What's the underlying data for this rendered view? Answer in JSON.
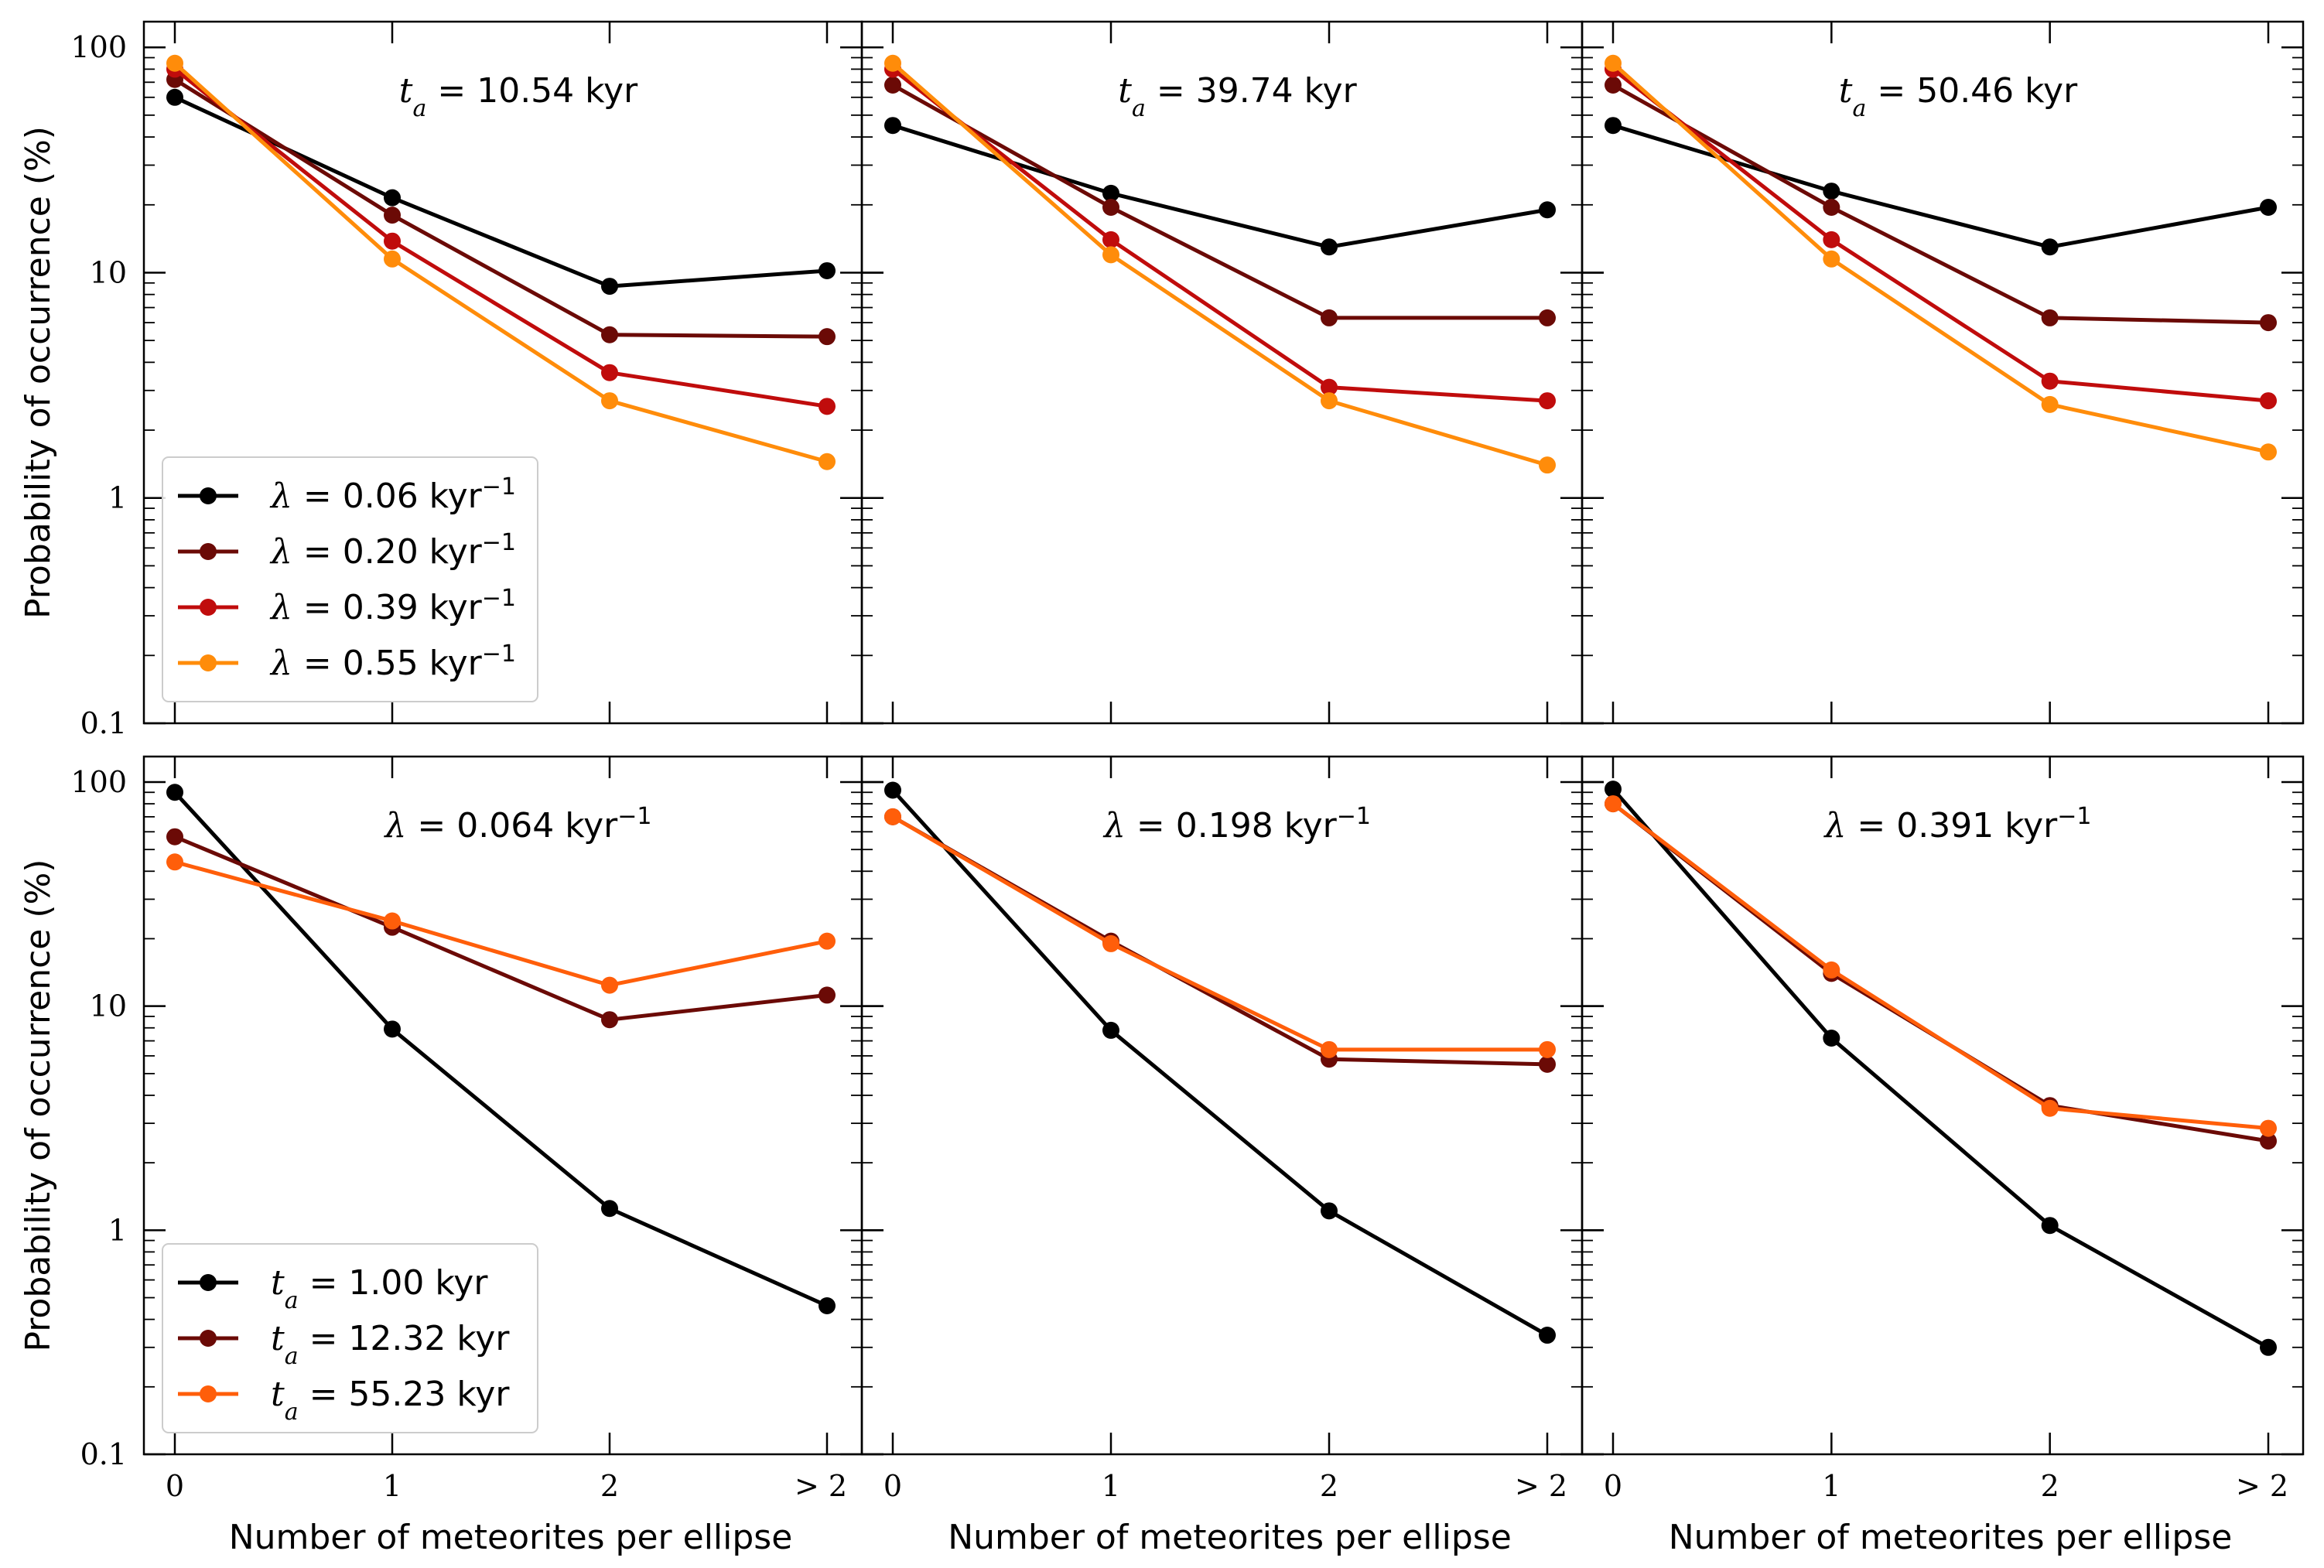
{
  "figure": {
    "ylabel": "Probability of occurrence (%)",
    "xlabel": "Number of meteorites per ellipse",
    "x_categories": [
      "0",
      "1",
      "2",
      "> 2"
    ],
    "y_tick_labels": [
      "0.1",
      "1",
      "10",
      "100"
    ],
    "ylim": [
      0.1,
      130
    ]
  },
  "chart_data": [
    {
      "type": "line",
      "panel": "top-left",
      "annotation": "t_a = 10.54 kyr",
      "legend": {
        "placement": "lower-left",
        "entries": [
          "λ = 0.06 kyr⁻¹",
          "λ = 0.20 kyr⁻¹",
          "λ = 0.39 kyr⁻¹",
          "λ = 0.55 kyr⁻¹"
        ]
      },
      "series": [
        {
          "name": "λ = 0.06 kyr⁻¹",
          "color": "#000000",
          "values": [
            60,
            21.5,
            8.7,
            10.2
          ]
        },
        {
          "name": "λ = 0.20 kyr⁻¹",
          "color": "#6b0a06",
          "values": [
            72,
            18,
            5.3,
            5.2
          ]
        },
        {
          "name": "λ = 0.39 kyr⁻¹",
          "color": "#c00c0c",
          "values": [
            80,
            13.8,
            3.6,
            2.55
          ]
        },
        {
          "name": "λ = 0.55 kyr⁻¹",
          "color": "#ff8c0a",
          "values": [
            85,
            11.5,
            2.7,
            1.45
          ]
        }
      ]
    },
    {
      "type": "line",
      "panel": "top-middle",
      "annotation": "t_a = 39.74 kyr",
      "series": [
        {
          "name": "λ = 0.06 kyr⁻¹",
          "color": "#000000",
          "values": [
            45,
            22.5,
            13,
            19
          ]
        },
        {
          "name": "λ = 0.20 kyr⁻¹",
          "color": "#6b0a06",
          "values": [
            68,
            19.5,
            6.3,
            6.3
          ]
        },
        {
          "name": "λ = 0.39 kyr⁻¹",
          "color": "#c00c0c",
          "values": [
            80,
            14,
            3.1,
            2.7
          ]
        },
        {
          "name": "λ = 0.55 kyr⁻¹",
          "color": "#ff8c0a",
          "values": [
            85,
            12,
            2.7,
            1.4
          ]
        }
      ]
    },
    {
      "type": "line",
      "panel": "top-right",
      "annotation": "t_a = 50.46 kyr",
      "series": [
        {
          "name": "λ = 0.06 kyr⁻¹",
          "color": "#000000",
          "values": [
            45,
            23,
            13,
            19.5
          ]
        },
        {
          "name": "λ = 0.20 kyr⁻¹",
          "color": "#6b0a06",
          "values": [
            68,
            19.5,
            6.3,
            6.0
          ]
        },
        {
          "name": "λ = 0.39 kyr⁻¹",
          "color": "#c00c0c",
          "values": [
            80,
            14,
            3.3,
            2.7
          ]
        },
        {
          "name": "λ = 0.55 kyr⁻¹",
          "color": "#ff8c0a",
          "values": [
            85,
            11.5,
            2.6,
            1.6
          ]
        }
      ]
    },
    {
      "type": "line",
      "panel": "bottom-left",
      "annotation": "λ = 0.064 kyr⁻¹",
      "legend": {
        "placement": "lower-left",
        "entries": [
          "t_a = 1.00 kyr",
          "t_a = 12.32 kyr",
          "t_a = 55.23 kyr"
        ]
      },
      "series": [
        {
          "name": "t_a = 1.00 kyr",
          "color": "#000000",
          "values": [
            90,
            7.9,
            1.25,
            0.46
          ]
        },
        {
          "name": "t_a = 12.32 kyr",
          "color": "#6b0a06",
          "values": [
            57,
            22.5,
            8.7,
            11.2
          ]
        },
        {
          "name": "t_a = 55.23 kyr",
          "color": "#ff5e0a",
          "values": [
            44,
            24,
            12.4,
            19.5
          ]
        }
      ]
    },
    {
      "type": "line",
      "panel": "bottom-middle",
      "annotation": "λ = 0.198 kyr⁻¹",
      "series": [
        {
          "name": "t_a = 1.00 kyr",
          "color": "#000000",
          "values": [
            92,
            7.8,
            1.22,
            0.34
          ]
        },
        {
          "name": "t_a = 12.32 kyr",
          "color": "#6b0a06",
          "values": [
            70,
            19.5,
            5.8,
            5.5
          ]
        },
        {
          "name": "t_a = 55.23 kyr",
          "color": "#ff5e0a",
          "values": [
            70,
            19,
            6.4,
            6.4
          ]
        }
      ]
    },
    {
      "type": "line",
      "panel": "bottom-right",
      "annotation": "λ = 0.391 kyr⁻¹",
      "series": [
        {
          "name": "t_a = 1.00 kyr",
          "color": "#000000",
          "values": [
            93,
            7.2,
            1.05,
            0.3
          ]
        },
        {
          "name": "t_a = 12.32 kyr",
          "color": "#6b0a06",
          "values": [
            80,
            14,
            3.6,
            2.5
          ]
        },
        {
          "name": "t_a = 55.23 kyr",
          "color": "#ff5e0a",
          "values": [
            80,
            14.5,
            3.5,
            2.85
          ]
        }
      ]
    }
  ]
}
